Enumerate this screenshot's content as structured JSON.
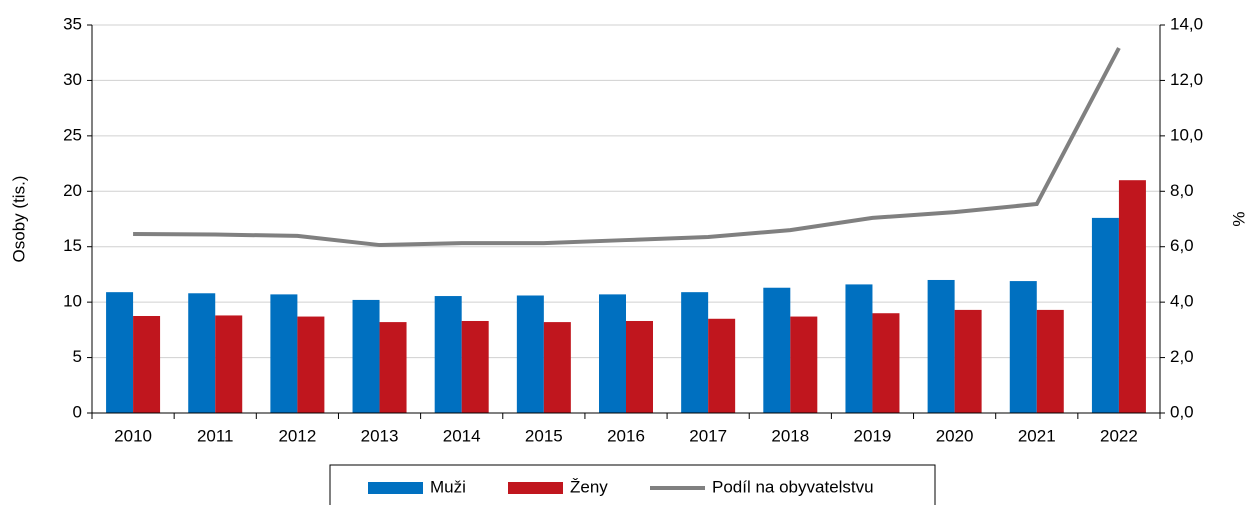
{
  "chart_data": {
    "type": "bar",
    "y_label": "Osoby (tis.)",
    "y2_label": "%",
    "categories": [
      "2010",
      "2011",
      "2012",
      "2013",
      "2014",
      "2015",
      "2016",
      "2017",
      "2018",
      "2019",
      "2020",
      "2021",
      "2022"
    ],
    "series": [
      {
        "name": "Muži",
        "color": "#0070c0",
        "values": [
          10.9,
          10.8,
          10.7,
          10.2,
          10.55,
          10.6,
          10.7,
          10.9,
          11.3,
          11.6,
          12.0,
          11.9,
          17.6
        ]
      },
      {
        "name": "Ženy",
        "color": "#c0161e",
        "values": [
          8.75,
          8.8,
          8.7,
          8.2,
          8.3,
          8.2,
          8.3,
          8.5,
          8.7,
          9.0,
          9.3,
          9.3,
          21.0
        ]
      },
      {
        "name": "Podíl na obyvatelstvu",
        "color": "#808080",
        "type": "line",
        "axis": "y2",
        "values": [
          6.46,
          6.44,
          6.39,
          6.06,
          6.13,
          6.13,
          6.24,
          6.35,
          6.6,
          7.04,
          7.25,
          7.54,
          13.17
        ]
      }
    ],
    "ylim": [
      0,
      35
    ],
    "yticks": [
      0,
      5,
      10,
      15,
      20,
      25,
      30,
      35
    ],
    "y2lim": [
      0,
      14
    ],
    "y2ticks": [
      {
        "value": 0,
        "label": "0,0"
      },
      {
        "value": 2,
        "label": "2,0"
      },
      {
        "value": 4,
        "label": "4,0"
      },
      {
        "value": 6,
        "label": "6,0"
      },
      {
        "value": 8,
        "label": "8,0"
      },
      {
        "value": 10,
        "label": "10,0"
      },
      {
        "value": 12,
        "label": "12,0"
      },
      {
        "value": 14,
        "label": "14,0"
      }
    ],
    "grid": true,
    "legend": "bottom"
  }
}
